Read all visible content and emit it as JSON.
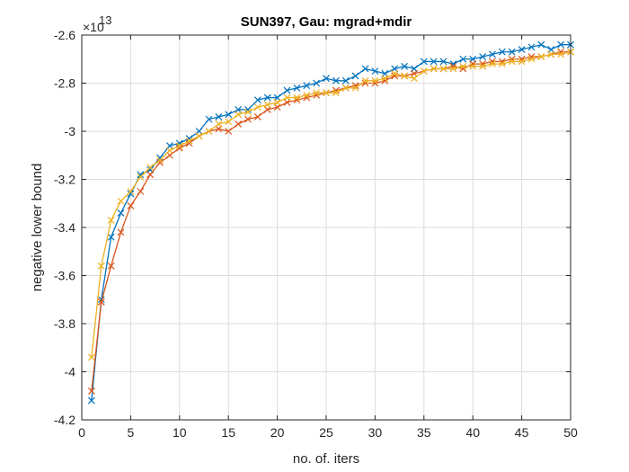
{
  "chart_data": {
    "type": "line",
    "title": "SUN397, Gau: mgrad+mdir",
    "xlabel": "no. of. iters",
    "ylabel": "negative lower bound",
    "y_exponent_label": "×10",
    "y_exponent_power": "13",
    "xlim": [
      0,
      50
    ],
    "ylim": [
      -4.2,
      -2.6
    ],
    "xticks": [
      0,
      5,
      10,
      15,
      20,
      25,
      30,
      35,
      40,
      45,
      50
    ],
    "yticks": [
      -4.2,
      -4,
      -3.8,
      -3.6,
      -3.4,
      -3.2,
      -3,
      -2.8,
      -2.6
    ],
    "xtick_labels": [
      "0",
      "5",
      "10",
      "15",
      "20",
      "25",
      "30",
      "35",
      "40",
      "45",
      "50"
    ],
    "ytick_labels": [
      "-4.2",
      "-4",
      "-3.8",
      "-3.6",
      "-3.4",
      "-3.2",
      "-3",
      "-2.8",
      "-2.6"
    ],
    "grid": true,
    "marker": "x",
    "x": [
      1,
      2,
      3,
      4,
      5,
      6,
      7,
      8,
      9,
      10,
      11,
      12,
      13,
      14,
      15,
      16,
      17,
      18,
      19,
      20,
      21,
      22,
      23,
      24,
      25,
      26,
      27,
      28,
      29,
      30,
      31,
      32,
      33,
      34,
      35,
      36,
      37,
      38,
      39,
      40,
      41,
      42,
      43,
      44,
      45,
      46,
      47,
      48,
      49,
      50
    ],
    "series": [
      {
        "color": "#0072BD",
        "values": [
          -4.12,
          -3.7,
          -3.44,
          -3.34,
          -3.26,
          -3.18,
          -3.16,
          -3.11,
          -3.06,
          -3.05,
          -3.03,
          -3.0,
          -2.95,
          -2.94,
          -2.93,
          -2.91,
          -2.91,
          -2.87,
          -2.86,
          -2.86,
          -2.83,
          -2.82,
          -2.81,
          -2.8,
          -2.78,
          -2.79,
          -2.79,
          -2.77,
          -2.74,
          -2.75,
          -2.76,
          -2.74,
          -2.73,
          -2.74,
          -2.71,
          -2.71,
          -2.71,
          -2.72,
          -2.7,
          -2.7,
          -2.69,
          -2.68,
          -2.67,
          -2.67,
          -2.66,
          -2.65,
          -2.64,
          -2.66,
          -2.64,
          -2.64
        ]
      },
      {
        "color": "#D95319",
        "values": [
          -4.08,
          -3.71,
          -3.56,
          -3.42,
          -3.31,
          -3.25,
          -3.18,
          -3.13,
          -3.1,
          -3.07,
          -3.05,
          -3.02,
          -3.0,
          -2.99,
          -3.0,
          -2.97,
          -2.95,
          -2.94,
          -2.91,
          -2.9,
          -2.88,
          -2.87,
          -2.86,
          -2.85,
          -2.84,
          -2.83,
          -2.82,
          -2.81,
          -2.8,
          -2.8,
          -2.79,
          -2.77,
          -2.77,
          -2.76,
          -2.75,
          -2.74,
          -2.74,
          -2.73,
          -2.74,
          -2.72,
          -2.72,
          -2.71,
          -2.71,
          -2.7,
          -2.7,
          -2.69,
          -2.69,
          -2.68,
          -2.67,
          -2.67
        ]
      },
      {
        "color": "#EDB120",
        "values": [
          -3.94,
          -3.56,
          -3.37,
          -3.29,
          -3.25,
          -3.19,
          -3.15,
          -3.12,
          -3.08,
          -3.06,
          -3.04,
          -3.02,
          -3.0,
          -2.97,
          -2.96,
          -2.93,
          -2.92,
          -2.9,
          -2.89,
          -2.88,
          -2.86,
          -2.86,
          -2.85,
          -2.84,
          -2.84,
          -2.84,
          -2.82,
          -2.82,
          -2.79,
          -2.79,
          -2.78,
          -2.76,
          -2.77,
          -2.78,
          -2.75,
          -2.74,
          -2.74,
          -2.74,
          -2.73,
          -2.73,
          -2.73,
          -2.72,
          -2.72,
          -2.71,
          -2.71,
          -2.7,
          -2.69,
          -2.68,
          -2.68,
          -2.67
        ]
      }
    ]
  }
}
